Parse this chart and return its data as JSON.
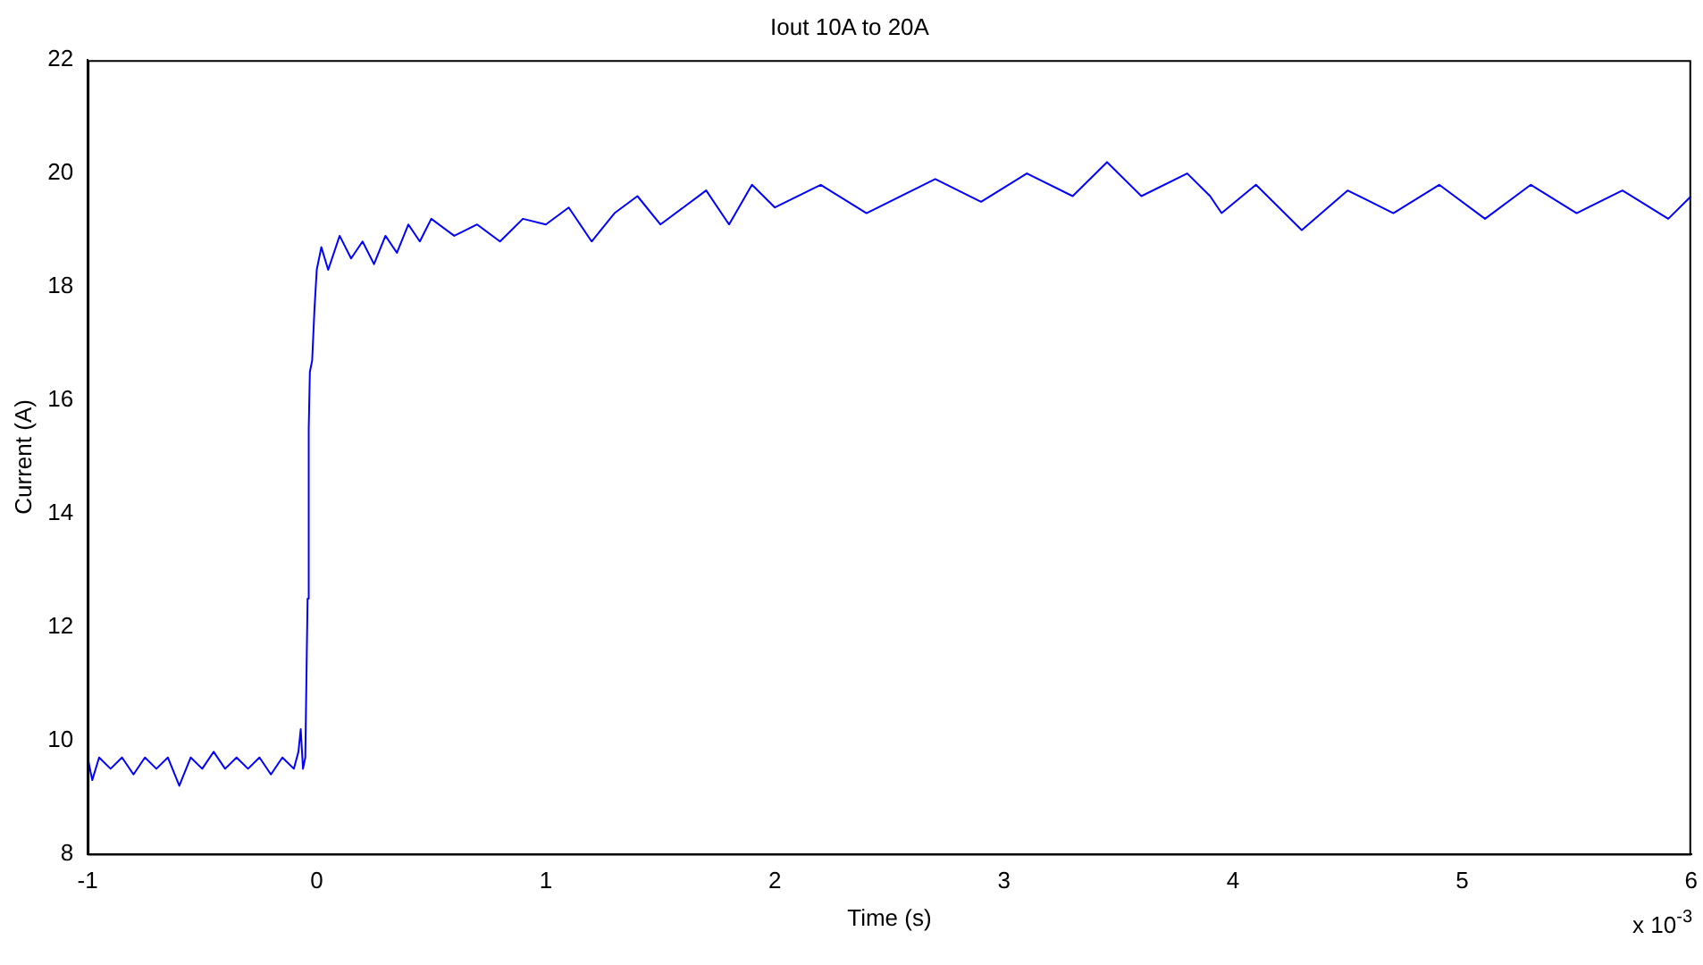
{
  "chart_data": {
    "type": "line",
    "title": "Iout 10A to 20A",
    "xlabel": "Time (s)",
    "ylabel": "Current (A)",
    "annotations": [
      "x 10$^{-3}$"
    ],
    "xlim": [
      -1,
      6
    ],
    "xticks": [
      -1,
      0,
      1,
      2,
      3,
      4,
      5,
      6
    ],
    "ylim": [
      8,
      22
    ],
    "yticks": [
      8,
      10,
      12,
      14,
      16,
      18,
      20,
      22
    ],
    "grid": false,
    "legend": false,
    "marker": "none",
    "line_style": "solid",
    "series": [
      {
        "color": "#0000ff",
        "x": [
          -1,
          -0.98,
          -0.95,
          -0.9,
          -0.85,
          -0.8,
          -0.75,
          -0.7,
          -0.65,
          -0.6,
          -0.55,
          -0.5,
          -0.45,
          -0.4,
          -0.35,
          -0.3,
          -0.25,
          -0.2,
          -0.15,
          -0.1,
          -0.08,
          -0.07,
          -0.06,
          -0.05,
          -0.04,
          -0.035,
          -0.03,
          -0.02,
          -0.01,
          0,
          0.02,
          0.05,
          0.1,
          0.15,
          0.2,
          0.25,
          0.3,
          0.35,
          0.4,
          0.45,
          0.5,
          0.6,
          0.7,
          0.8,
          0.9,
          1.0,
          1.1,
          1.2,
          1.3,
          1.4,
          1.5,
          1.6,
          1.7,
          1.8,
          1.9,
          2.0,
          2.2,
          2.4,
          2.6,
          2.7,
          2.9,
          3.1,
          3.3,
          3.45,
          3.6,
          3.8,
          3.9,
          3.95,
          4.1,
          4.3,
          4.5,
          4.7,
          4.9,
          5.1,
          5.3,
          5.5,
          5.7,
          5.9,
          6
        ],
        "values": [
          9.7,
          9.3,
          9.7,
          9.5,
          9.7,
          9.4,
          9.7,
          9.5,
          9.7,
          9.2,
          9.7,
          9.5,
          9.8,
          9.5,
          9.7,
          9.5,
          9.7,
          9.4,
          9.7,
          9.5,
          9.8,
          10.2,
          9.5,
          9.7,
          12.5,
          15.5,
          16.5,
          16.7,
          17.6,
          18.3,
          18.7,
          18.3,
          18.9,
          18.5,
          18.8,
          18.4,
          18.9,
          18.6,
          19.1,
          18.8,
          19.2,
          18.9,
          19.1,
          18.8,
          19.2,
          19.1,
          19.4,
          18.8,
          19.3,
          19.6,
          19.1,
          19.4,
          19.7,
          19.1,
          19.8,
          19.4,
          19.8,
          19.3,
          19.7,
          19.9,
          19.5,
          20.0,
          19.6,
          20.2,
          19.6,
          20.0,
          19.6,
          19.3,
          19.8,
          19.0,
          19.7,
          19.3,
          19.8,
          19.2,
          19.8,
          19.3,
          19.7,
          19.2,
          19.6
        ]
      }
    ]
  }
}
